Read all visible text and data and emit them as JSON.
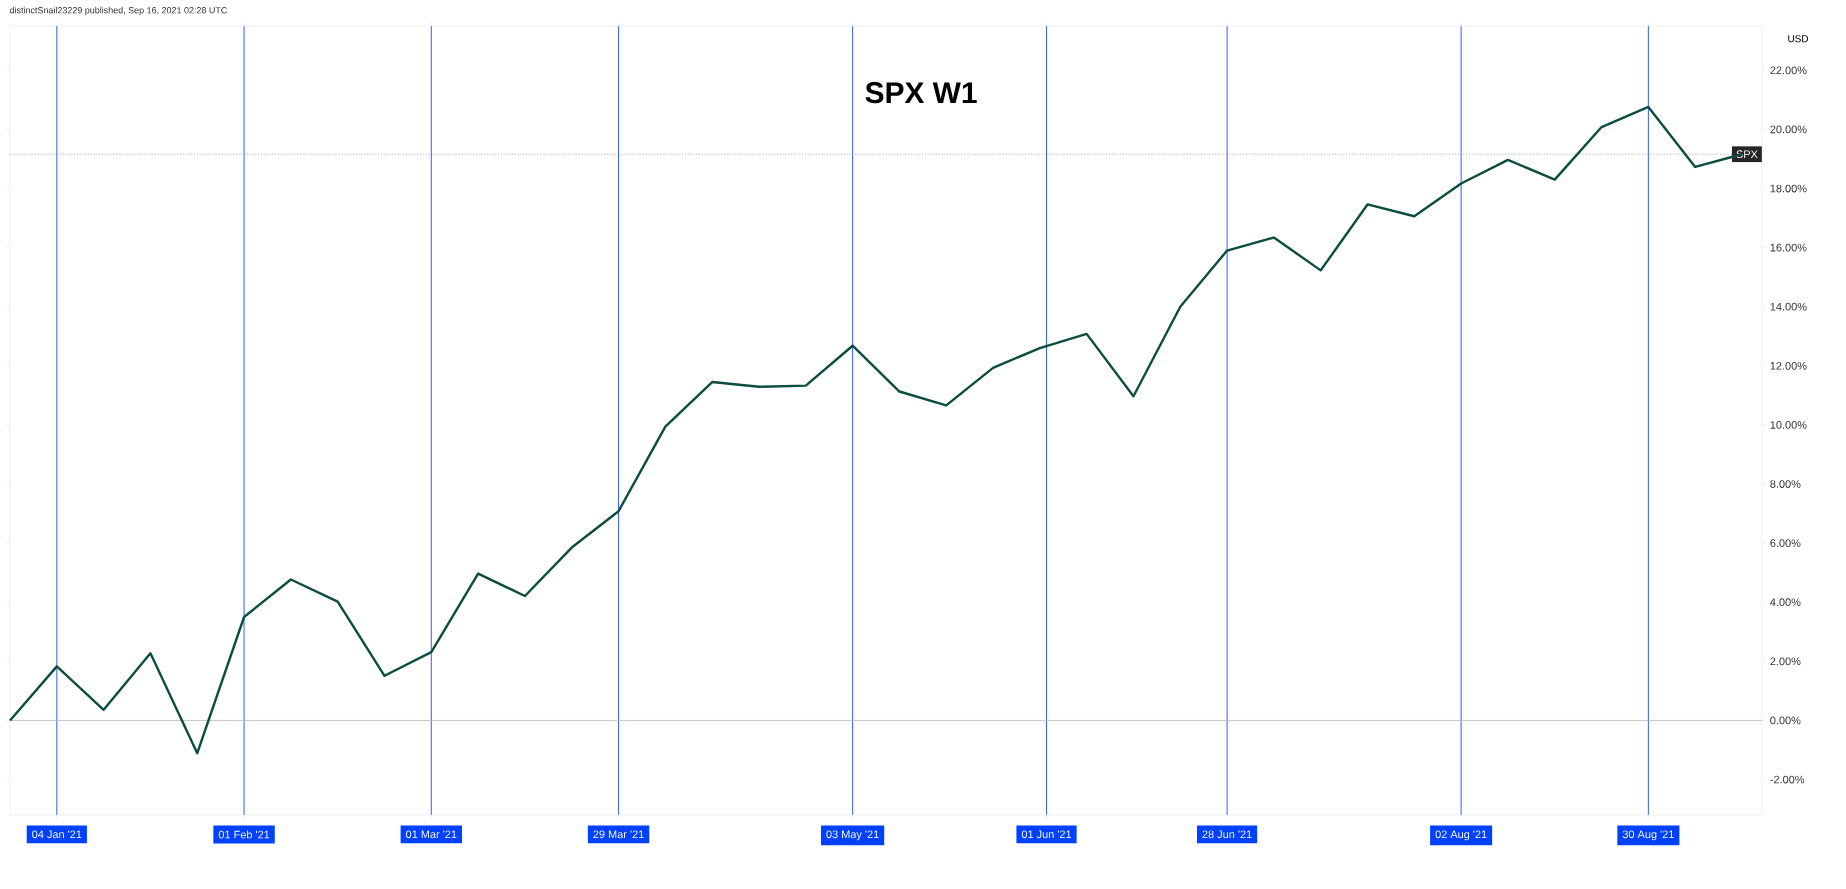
{
  "chart_data": {
    "type": "line",
    "title": "SPX W1",
    "annotations": [
      "distinctSnail23229 published, Sep 16, 2021 02:28 UTC",
      "USD"
    ],
    "x": [
      "2020-12-28",
      "2021-01-04",
      "2021-01-11",
      "2021-01-18",
      "2021-01-25",
      "2021-02-01",
      "2021-02-08",
      "2021-02-15",
      "2021-02-22",
      "2021-03-01",
      "2021-03-08",
      "2021-03-15",
      "2021-03-22",
      "2021-03-29",
      "2021-04-05",
      "2021-04-12",
      "2021-04-19",
      "2021-04-26",
      "2021-05-03",
      "2021-05-10",
      "2021-05-17",
      "2021-05-24",
      "2021-05-31",
      "2021-06-07",
      "2021-06-14",
      "2021-06-21",
      "2021-06-28",
      "2021-07-05",
      "2021-07-12",
      "2021-07-19",
      "2021-07-26",
      "2021-08-02",
      "2021-08-09",
      "2021-08-16",
      "2021-08-23",
      "2021-08-30",
      "2021-09-06",
      "2021-09-13"
    ],
    "series": [
      {
        "color": "#0b4d3f",
        "values": [
          0,
          1.83,
          0.36,
          2.27,
          -1.11,
          3.5,
          4.77,
          4.02,
          1.51,
          2.31,
          4.97,
          4.21,
          5.85,
          7.08,
          9.94,
          11.45,
          11.29,
          11.33,
          12.68,
          11.13,
          10.66,
          11.93,
          12.6,
          13.08,
          10.97,
          14.0,
          15.9,
          16.34,
          15.23,
          17.46,
          17.06,
          18.17,
          18.97,
          18.3,
          20.08,
          20.76,
          18.73,
          19.16
        ]
      }
    ],
    "xlim": [
      "2020-12-28",
      "2021-09-16"
    ],
    "xticks": [
      {
        "value": "2021-01-04",
        "label": "04 Jan '21"
      },
      {
        "value": "2021-02-01",
        "label": "01 Feb '21"
      },
      {
        "value": "2021-03-01",
        "label": "01 Mar '21"
      },
      {
        "value": "2021-03-29",
        "label": "29 Mar '21"
      },
      {
        "value": "2021-05-03",
        "label": "03 May '21"
      },
      {
        "value": "2021-06-01",
        "label": "01 Jun '21"
      },
      {
        "value": "2021-06-28",
        "label": "28 Jun '21"
      },
      {
        "value": "2021-08-02",
        "label": "02 Aug '21"
      },
      {
        "value": "2021-08-30",
        "label": "30 Aug '21"
      }
    ],
    "ylim": [
      -3.2,
      23.5
    ],
    "yticks": [
      {
        "value": -2,
        "label": "-2.00%"
      },
      {
        "value": 0,
        "label": "0.00%"
      },
      {
        "value": 2,
        "label": "2.00%"
      },
      {
        "value": 4,
        "label": "4.00%"
      },
      {
        "value": 6,
        "label": "6.00%"
      },
      {
        "value": 8,
        "label": "8.00%"
      },
      {
        "value": 10,
        "label": "10.00%"
      },
      {
        "value": 12,
        "label": "12.00%"
      },
      {
        "value": 14,
        "label": "14.00%"
      },
      {
        "value": 16,
        "label": "16.00%"
      },
      {
        "value": 18,
        "label": "18.00%"
      },
      {
        "value": 20,
        "label": "20.00%"
      },
      {
        "value": 22,
        "label": "22.00%"
      }
    ],
    "ref_lines": [
      {
        "axis": "y",
        "value": 0,
        "color": "#b2b5be",
        "line_style": "solid"
      },
      {
        "axis": "y",
        "value": 19.16,
        "label": "SPX",
        "color": "#787b86",
        "line_style": "dotted"
      }
    ],
    "grid": "x",
    "marker": "none",
    "line_style": "solid"
  }
}
